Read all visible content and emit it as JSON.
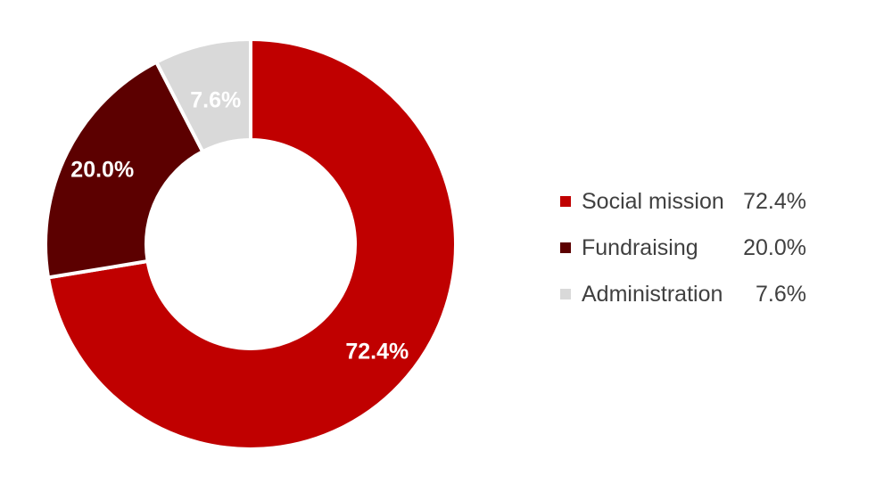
{
  "chart_data": {
    "type": "pie",
    "donut": true,
    "title": "",
    "categories": [
      "Social mission",
      "Fundraising",
      "Administration"
    ],
    "values": [
      72.4,
      20.0,
      7.6
    ],
    "value_labels": [
      "72.4%",
      "20.0%",
      "7.6%"
    ],
    "colors": [
      "#c00000",
      "#5c0000",
      "#d9d9d9"
    ],
    "legend_position": "right"
  },
  "legend": {
    "items": [
      {
        "label": "Social mission",
        "value": "72.4%",
        "color": "#c00000"
      },
      {
        "label": "Fundraising",
        "value": "20.0%",
        "color": "#5c0000"
      },
      {
        "label": "Administration",
        "value": "7.6%",
        "color": "#d9d9d9"
      }
    ]
  }
}
